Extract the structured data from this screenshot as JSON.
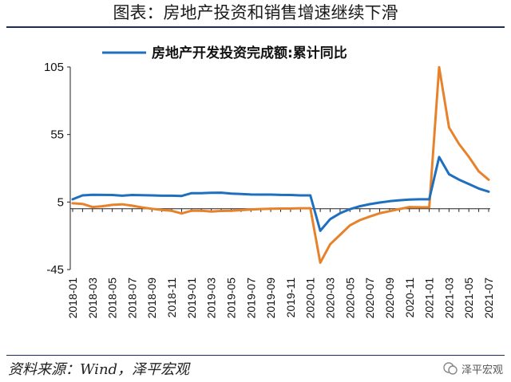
{
  "title": "图表：房地产投资和销售增速继续下滑",
  "source": "资料来源：Wind，泽平宏观",
  "watermark": "泽平宏观",
  "chart_data": {
    "type": "line",
    "title": "",
    "xlabel": "",
    "ylabel": "",
    "ylim": [
      -45,
      105
    ],
    "yticks": [
      105,
      55,
      5,
      -45
    ],
    "grid": false,
    "legend_position": "top",
    "x": [
      "2018-01",
      "2018-02",
      "2018-03",
      "2018-04",
      "2018-05",
      "2018-06",
      "2018-07",
      "2018-08",
      "2018-09",
      "2018-10",
      "2018-11",
      "2018-12",
      "2019-01",
      "2019-02",
      "2019-03",
      "2019-04",
      "2019-05",
      "2019-06",
      "2019-07",
      "2019-08",
      "2019-09",
      "2019-10",
      "2019-11",
      "2019-12",
      "2020-01",
      "2020-02",
      "2020-03",
      "2020-04",
      "2020-05",
      "2020-06",
      "2020-07",
      "2020-08",
      "2020-09",
      "2020-10",
      "2020-11",
      "2020-12",
      "2021-01",
      "2021-02",
      "2021-03",
      "2021-04",
      "2021-05",
      "2021-06",
      "2021-07"
    ],
    "xtick_labels": [
      "2018-01",
      "2018-03",
      "2018-05",
      "2018-07",
      "2018-09",
      "2018-11",
      "2019-01",
      "2019-03",
      "2019-05",
      "2019-07",
      "2019-09",
      "2019-11",
      "2020-01",
      "2020-03",
      "2020-05",
      "2020-07",
      "2020-09",
      "2020-11",
      "2021-01",
      "2021-03",
      "2021-05",
      "2021-07"
    ],
    "series": [
      {
        "name": "房地产开发投资完成额:累计同比",
        "color": "#1f6fbf",
        "values": [
          7.0,
          9.9,
          10.4,
          10.3,
          10.2,
          9.7,
          10.2,
          10.1,
          9.9,
          9.7,
          9.7,
          9.5,
          11.6,
          11.6,
          11.8,
          11.9,
          11.2,
          10.9,
          10.6,
          10.5,
          10.5,
          10.3,
          10.2,
          9.9,
          9.9,
          -16.3,
          -7.7,
          -3.3,
          -0.3,
          1.9,
          3.4,
          4.6,
          5.6,
          6.3,
          6.8,
          7.0,
          7.0,
          38.3,
          25.6,
          21.6,
          18.3,
          15.0,
          12.7
        ]
      },
      {
        "name": "",
        "color": "#e8822a",
        "values": [
          4.1,
          3.6,
          1.3,
          1.9,
          2.9,
          3.3,
          2.3,
          1.0,
          0.0,
          -0.9,
          -1.5,
          -3.5,
          -1.4,
          -1.4,
          -2.0,
          -1.6,
          -1.4,
          -1.0,
          -0.6,
          -0.2,
          0.0,
          0.2,
          0.2,
          0.4,
          0.4,
          -39.9,
          -26.3,
          -19.3,
          -12.3,
          -8.4,
          -5.8,
          -3.3,
          -1.8,
          -0.2,
          1.3,
          1.1,
          1.1,
          104.9,
          60.2,
          48.1,
          38.5,
          27.7,
          21.5
        ]
      }
    ]
  }
}
